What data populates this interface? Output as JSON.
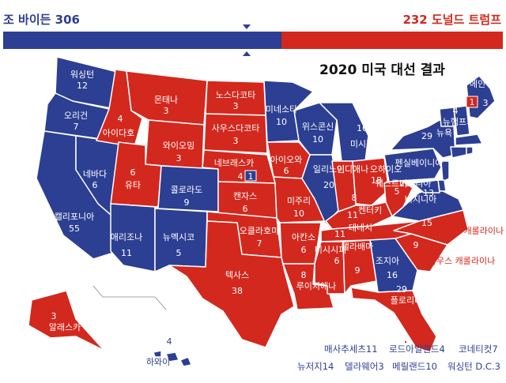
{
  "header": {
    "left_label": "조 바이든 306",
    "right_label": "232 도널드 트럼프",
    "title": "2020 미국 대선 결과",
    "biden_ev": 306,
    "trump_ev": 232
  },
  "colors": {
    "biden": "#2c3f92",
    "trump": "#d3281e",
    "border": "#ffffff"
  },
  "states": {
    "wa": {
      "name": "워싱턴",
      "ev": "12",
      "winner": "biden"
    },
    "or": {
      "name": "오리건",
      "ev": "7",
      "winner": "biden"
    },
    "ca": {
      "name": "캘리포니아",
      "ev": "55",
      "winner": "biden"
    },
    "nv": {
      "name": "네바다",
      "ev": "6",
      "winner": "biden"
    },
    "id": {
      "name": "아이다호",
      "ev": "4",
      "winner": "trump"
    },
    "mt": {
      "name": "몬태나",
      "ev": "3",
      "winner": "trump"
    },
    "wy": {
      "name": "와이오밍",
      "ev": "3",
      "winner": "trump"
    },
    "ut": {
      "name": "유타",
      "ev": "6",
      "winner": "trump"
    },
    "az": {
      "name": "애리조나",
      "ev": "11",
      "winner": "biden"
    },
    "co": {
      "name": "콜로라도",
      "ev": "9",
      "winner": "biden"
    },
    "nm": {
      "name": "뉴멕시코",
      "ev": "5",
      "winner": "biden"
    },
    "nd": {
      "name": "노스다코타",
      "ev": "3",
      "winner": "trump"
    },
    "sd": {
      "name": "사우스다코타",
      "ev": "3",
      "winner": "trump"
    },
    "ne": {
      "name": "네브래스카",
      "ev_trump": "4",
      "ev_biden": "1",
      "winner": "trump"
    },
    "ks": {
      "name": "캔자스",
      "ev": "6",
      "winner": "trump"
    },
    "ok": {
      "name": "오클라호마",
      "ev": "7",
      "winner": "trump"
    },
    "tx": {
      "name": "텍사스",
      "ev": "38",
      "winner": "trump"
    },
    "mn": {
      "name": "미네소타",
      "ev": "10",
      "winner": "biden"
    },
    "ia": {
      "name": "아이오와",
      "ev": "6",
      "winner": "trump"
    },
    "mo": {
      "name": "미주리",
      "ev": "10",
      "winner": "trump"
    },
    "ar": {
      "name": "아칸소",
      "ev": "6",
      "winner": "trump"
    },
    "la": {
      "name": "루이지애나",
      "ev": "8",
      "winner": "trump"
    },
    "wi": {
      "name": "위스콘신",
      "ev": "10",
      "winner": "biden"
    },
    "il": {
      "name": "일리노이",
      "ev": "20",
      "winner": "biden"
    },
    "mi": {
      "name": "미시간",
      "ev": "16",
      "winner": "biden"
    },
    "in": {
      "name": "인디애나",
      "ev": "11",
      "winner": "trump"
    },
    "oh": {
      "name": "오하이오",
      "ev": "18",
      "winner": "trump"
    },
    "ky": {
      "name": "켄터키",
      "ev": "8",
      "winner": "trump"
    },
    "tn": {
      "name": "테네시",
      "ev": "11",
      "winner": "trump"
    },
    "ms": {
      "name": "미시시피",
      "ev": "6",
      "winner": "trump"
    },
    "al": {
      "name": "앨라배마",
      "ev": "9",
      "winner": "trump"
    },
    "ga": {
      "name": "조지아",
      "ev": "16",
      "winner": "biden"
    },
    "fl": {
      "name": "플로리다",
      "ev": "29",
      "winner": "trump"
    },
    "sc": {
      "name": "사우스 캐롤라이나",
      "ev": "9",
      "winner": "trump"
    },
    "nc": {
      "name": "노스 캐롤라이나",
      "ev": "15",
      "winner": "trump"
    },
    "va": {
      "name": "버지니아",
      "ev": "13",
      "winner": "biden"
    },
    "wv": {
      "name": "웨스트버지니아",
      "ev": "5",
      "winner": "trump"
    },
    "pa": {
      "name": "펜실베이니아",
      "ev": "20",
      "winner": "biden"
    },
    "ny": {
      "name": "뉴욕",
      "ev": "29",
      "winner": "biden"
    },
    "vt": {
      "name": "버몬트",
      "ev": "3",
      "winner": "biden"
    },
    "nh": {
      "name": "뉴햄프셔",
      "ev": "4",
      "winner": "biden"
    },
    "me": {
      "name": "메인",
      "ev_trump": "1",
      "ev_biden": "3",
      "winner": "biden"
    },
    "ak": {
      "name": "알래스카",
      "ev": "3",
      "winner": "trump"
    },
    "hi": {
      "name": "하와이",
      "ev": "4",
      "winner": "biden"
    }
  },
  "small_states": [
    "매사추세츠11",
    "로드아일랜드4",
    "코네티컷7",
    "뉴저지14",
    "델라웨어3",
    "메릴랜드10",
    "워싱턴 D.C.3"
  ]
}
